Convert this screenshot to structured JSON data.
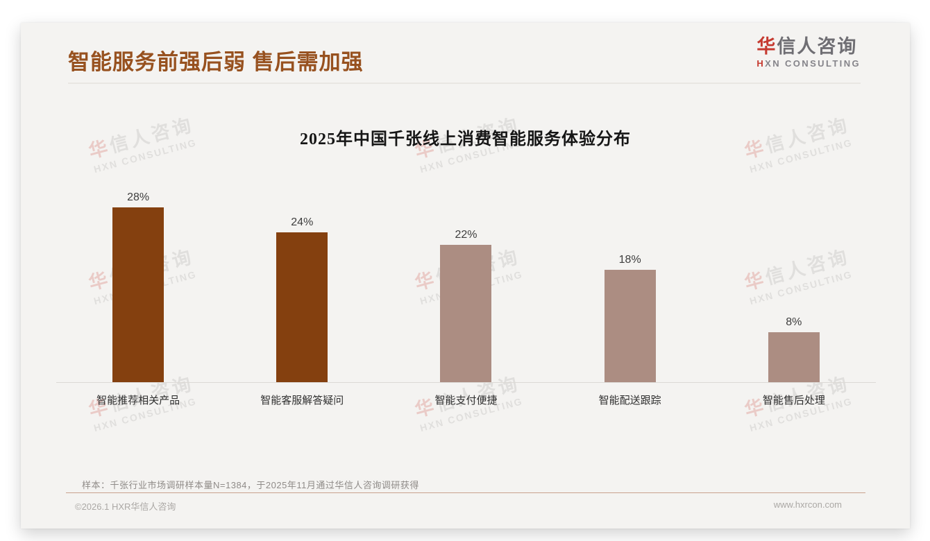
{
  "page": {
    "title": "智能服务前强后弱 售后需加强",
    "logo": {
      "main_accent": "华",
      "main_rest": "信人咨询",
      "sub_accent": "H",
      "sub_rest": "XN CONSULTING"
    },
    "watermark": {
      "line1_accent": "华",
      "line1_rest": "信人咨询",
      "line2": "HXN CONSULTING"
    },
    "footnote": "样本：千张行业市场调研样本量N=1384，于2025年11月通过华信人咨询调研获得",
    "footer_left": "©2026.1 HXR华信人咨询",
    "footer_right": "www.hxrcon.com"
  },
  "colors": {
    "title_brown": "#97511F",
    "dark_bar": "#84400F",
    "light_bar": "#AC8D82",
    "logo_red": "#C5392F",
    "card_background": "#F4F3F1",
    "footer_line_tan": "#C9A18D"
  },
  "chart_data": {
    "type": "bar",
    "title": "2025年中国千张线上消费智能服务体验分布",
    "categories": [
      "智能推荐相关产品",
      "智能客服解答疑问",
      "智能支付便捷",
      "智能配送跟踪",
      "智能售后处理"
    ],
    "values": [
      28,
      24,
      22,
      18,
      8
    ],
    "value_labels": [
      "28%",
      "24%",
      "22%",
      "18%",
      "8%"
    ],
    "unit": "%",
    "bar_colors": [
      "#84400F",
      "#84400F",
      "#AC8D82",
      "#AC8D82",
      "#AC8D82"
    ],
    "xlabel": "",
    "ylabel": "",
    "ylim": [
      0,
      30
    ],
    "grid": false,
    "legend": false,
    "value_labels_position": "above"
  }
}
